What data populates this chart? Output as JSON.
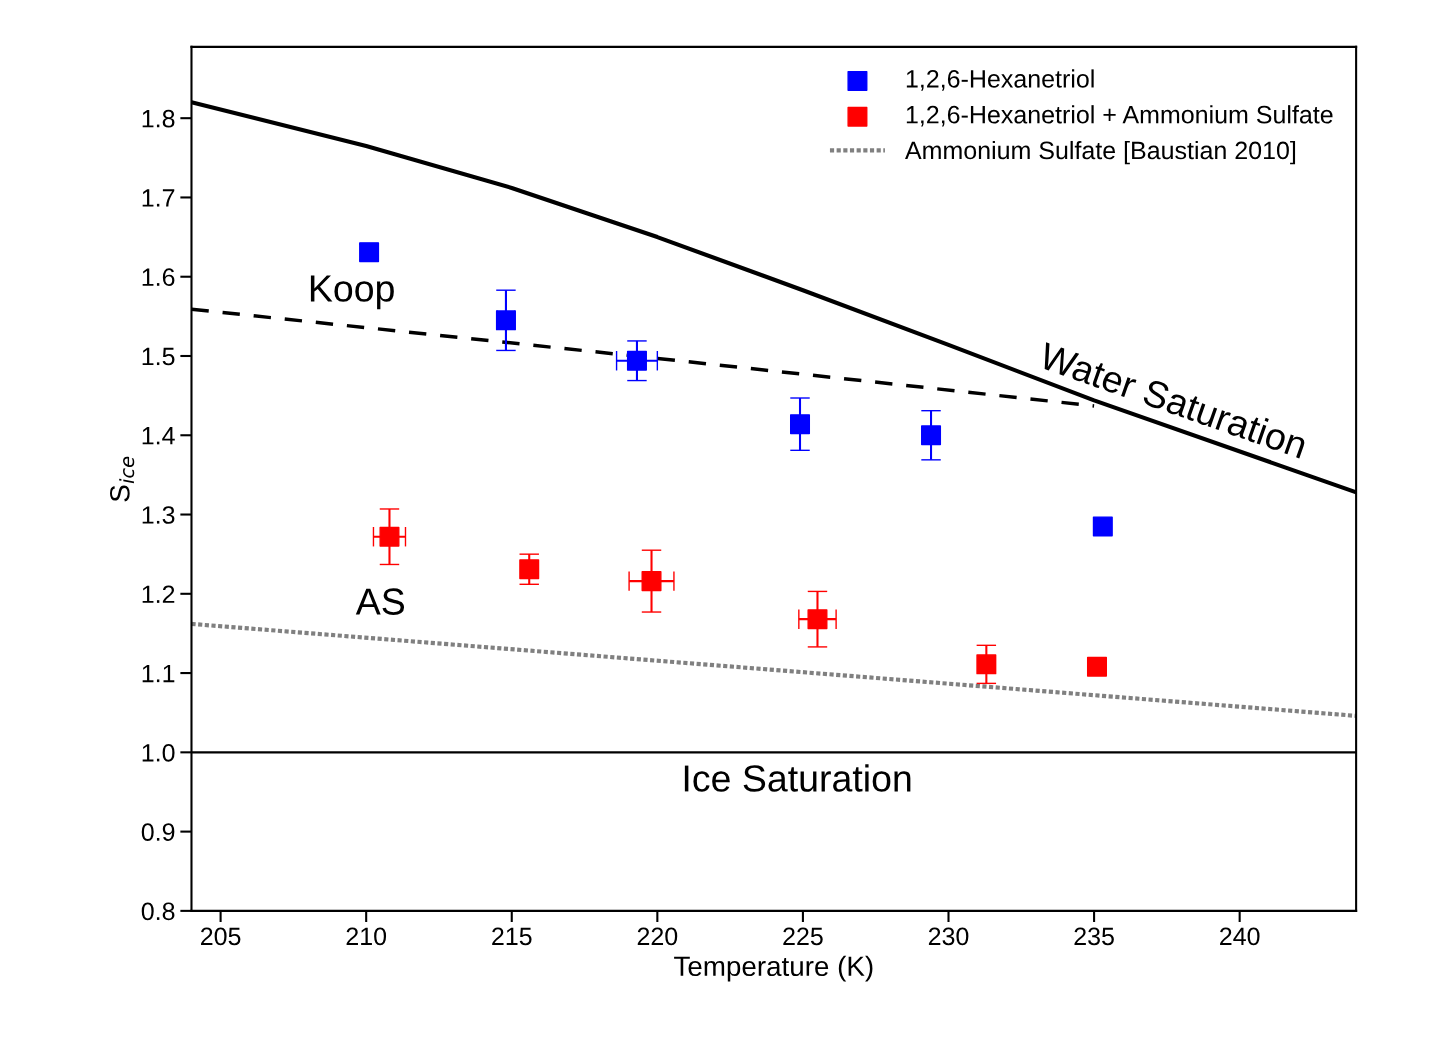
{
  "chart_data": {
    "type": "scatter",
    "xlabel": "Temperature (K)",
    "ylabel": "S$_{ice}$",
    "xlim": [
      204,
      244
    ],
    "xticks": [
      205,
      210,
      215,
      220,
      225,
      230,
      235,
      240
    ],
    "ylim": [
      0.8,
      1.89
    ],
    "yticks": [
      0.8,
      0.9,
      {
        "value": 1,
        "label": "1.0"
      },
      1.1,
      1.2,
      1.3,
      1.4,
      1.5,
      1.6,
      1.7,
      1.8
    ],
    "marker": "square",
    "legend": "top right",
    "grid": false,
    "series": [
      {
        "name": "1,2,6-Hexanetriol",
        "color": "#0000ff",
        "x": [
          210.1,
          214.8,
          219.3,
          224.9,
          229.4,
          235.3
        ],
        "values": [
          1.631,
          1.545,
          1.494,
          1.414,
          1.4,
          1.285
        ],
        "errors": [
          0.01,
          0.038,
          0.025,
          0.033,
          0.031,
          null
        ],
        "xerrors": [
          null,
          0.3,
          0.7,
          null,
          null,
          null
        ]
      },
      {
        "name": "1,2,6-Hexanetriol + Ammonium Sulfate",
        "color": "#ff0000",
        "x": [
          210.8,
          215.6,
          219.8,
          225.5,
          231.3,
          235.1
        ],
        "values": [
          1.272,
          1.231,
          1.216,
          1.168,
          1.111,
          1.108
        ],
        "errors": [
          0.035,
          0.019,
          0.039,
          0.035,
          0.024,
          null
        ],
        "xerrors": [
          0.55,
          null,
          0.77,
          0.64,
          null,
          null
        ]
      },
      {
        "name": "Ammonium Sulfate [Baustian 2010]",
        "type": "line",
        "color": "#808080",
        "line_style": "dotted",
        "marker": "none",
        "x": [
          204,
          244
        ],
        "values": [
          1.162,
          1.046
        ]
      },
      {
        "type": "line",
        "color": "#000000",
        "line_style": "solid",
        "marker": "none",
        "x": [
          204,
          210,
          215,
          220,
          225,
          230,
          235,
          244
        ],
        "values": [
          1.82,
          1.765,
          1.712,
          1.65,
          1.583,
          1.514,
          1.444,
          1.328
        ]
      },
      {
        "type": "line",
        "color": "#000000",
        "line_style": "dashed",
        "marker": "none",
        "x": [
          204,
          220,
          235
        ],
        "values": [
          1.559,
          1.497,
          1.437
        ]
      }
    ],
    "ref_lines": [
      {
        "axis": "y",
        "value": 1.0,
        "label": "Ice Saturation",
        "color": "#000000",
        "line_style": "solid"
      }
    ],
    "annotations": [
      {
        "text": "Koop",
        "x": 209.5,
        "y": 1.538
      },
      {
        "text": "AS",
        "x": 210.5,
        "y": 1.143
      },
      {
        "text": "Water Saturation",
        "x": 237.5,
        "y": 1.412
      }
    ]
  }
}
